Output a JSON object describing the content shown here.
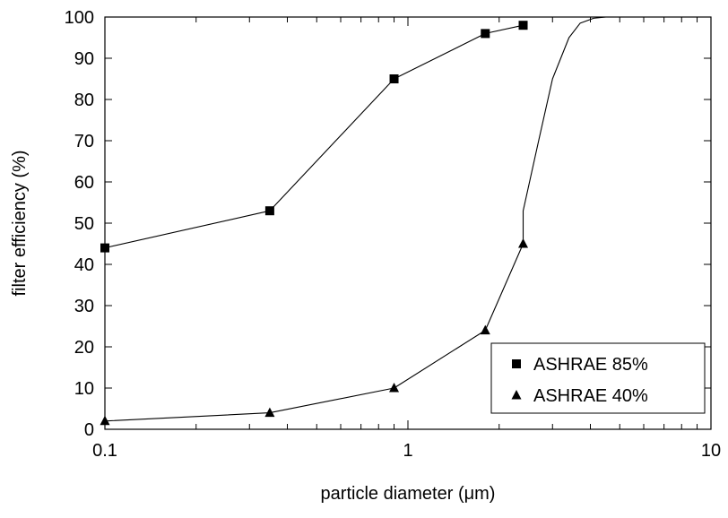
{
  "chart_data": {
    "type": "scatter",
    "xscale": "log",
    "xlabel": "particle diameter (μm)",
    "ylabel": "filter efficiency (%)",
    "xlim": [
      0.1,
      10
    ],
    "ylim": [
      0,
      100
    ],
    "xticks": [
      "0.1",
      "1",
      "10"
    ],
    "yticks": [
      "0",
      "10",
      "20",
      "30",
      "40",
      "50",
      "60",
      "70",
      "80",
      "90",
      "100"
    ],
    "grid": false,
    "legend_position": "bottom-right",
    "series": [
      {
        "name": "ASHRAE 85%",
        "marker": "square",
        "x": [
          0.1,
          0.35,
          0.9,
          1.8,
          2.4
        ],
        "y": [
          44,
          53,
          85,
          96,
          98
        ]
      },
      {
        "name": "ASHRAE 40%",
        "marker": "triangle",
        "x": [
          0.1,
          0.35,
          0.9,
          1.8,
          2.4
        ],
        "y": [
          2,
          4,
          10,
          24,
          45
        ]
      },
      {
        "marker": "none",
        "x": [
          2.4,
          2.4,
          2.7,
          3.0,
          3.4,
          3.7,
          4.1,
          4.5,
          5.0,
          10
        ],
        "y": [
          45,
          53,
          70,
          85,
          95,
          98.5,
          99.7,
          100,
          100,
          100
        ]
      }
    ]
  },
  "colors": {
    "line": "#000000",
    "background": "#ffffff"
  }
}
